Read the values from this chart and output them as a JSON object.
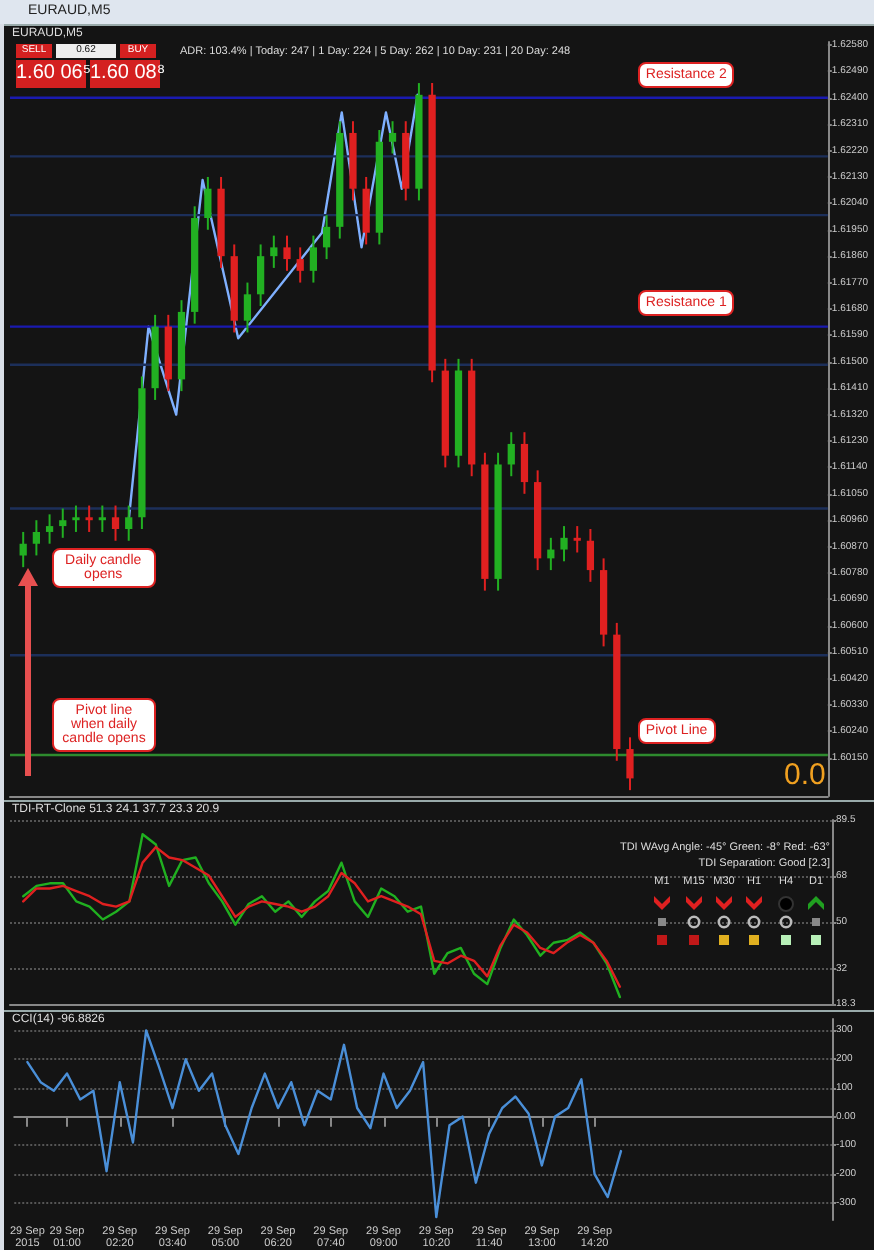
{
  "chart_data": [
    {
      "type": "candlestick",
      "title": "EURAUD,M5",
      "xlim": [
        "2015-09-28T23:40",
        "2015-09-29T20:20"
      ],
      "ylim": [
        1.6002,
        1.6259
      ],
      "tick_labels": "y",
      "yticks": [
        {
          "value": 1.6258,
          "label": "1.62580"
        },
        {
          "value": 1.6249,
          "label": "1.62490"
        },
        {
          "value": 1.624,
          "label": "1.62400"
        },
        {
          "value": 1.6231,
          "label": "1.62310"
        },
        {
          "value": 1.6222,
          "label": "1.62220"
        },
        {
          "value": 1.6213,
          "label": "1.62130"
        },
        {
          "value": 1.6204,
          "label": "1.62040"
        },
        {
          "value": 1.6195,
          "label": "1.61950"
        },
        {
          "value": 1.6186,
          "label": "1.61860"
        },
        {
          "value": 1.6177,
          "label": "1.61770"
        },
        {
          "value": 1.6168,
          "label": "1.61680"
        },
        {
          "value": 1.6159,
          "label": "1.61590"
        },
        {
          "value": 1.615,
          "label": "1.61500"
        },
        {
          "value": 1.6141,
          "label": "1.61410"
        },
        {
          "value": 1.6132,
          "label": "1.61320"
        },
        {
          "value": 1.6123,
          "label": "1.61230"
        },
        {
          "value": 1.6114,
          "label": "1.61140"
        },
        {
          "value": 1.6105,
          "label": "1.61050"
        },
        {
          "value": 1.6096,
          "label": "1.60960"
        },
        {
          "value": 1.6087,
          "label": "1.60870"
        },
        {
          "value": 1.6078,
          "label": "1.60780"
        },
        {
          "value": 1.6069,
          "label": "1.60690"
        },
        {
          "value": 1.606,
          "label": "1.60600"
        },
        {
          "value": 1.6051,
          "label": "1.60510"
        },
        {
          "value": 1.6042,
          "label": "1.60420"
        },
        {
          "value": 1.6033,
          "label": "1.60330"
        },
        {
          "value": 1.6024,
          "label": "1.60240"
        },
        {
          "value": 1.6015,
          "label": "1.60150"
        }
      ],
      "series": [
        {
          "x": [
            "2015-09-29T00:00",
            "2015-09-29T00:20",
            "2015-09-29T00:40",
            "2015-09-29T01:00",
            "2015-09-29T01:20",
            "2015-09-29T01:40",
            "2015-09-29T02:00",
            "2015-09-29T02:20",
            "2015-09-29T02:40",
            "2015-09-29T03:00",
            "2015-09-29T03:20",
            "2015-09-29T03:40",
            "2015-09-29T04:00",
            "2015-09-29T04:20",
            "2015-09-29T04:40",
            "2015-09-29T05:00",
            "2015-09-29T05:20",
            "2015-09-29T05:40",
            "2015-09-29T06:00",
            "2015-09-29T06:20",
            "2015-09-29T06:40",
            "2015-09-29T07:00",
            "2015-09-29T07:20",
            "2015-09-29T07:40",
            "2015-09-29T08:00",
            "2015-09-29T08:20",
            "2015-09-29T08:40",
            "2015-09-29T09:00",
            "2015-09-29T09:20",
            "2015-09-29T09:40",
            "2015-09-29T10:00",
            "2015-09-29T10:20",
            "2015-09-29T10:40",
            "2015-09-29T11:00",
            "2015-09-29T11:20",
            "2015-09-29T11:40",
            "2015-09-29T12:00",
            "2015-09-29T12:20",
            "2015-09-29T12:40",
            "2015-09-29T13:00",
            "2015-09-29T13:20",
            "2015-09-29T13:40",
            "2015-09-29T14:00",
            "2015-09-29T14:20",
            "2015-09-29T14:40",
            "2015-09-29T15:00",
            "2015-09-29T15:20"
          ],
          "ohlc": [
            [
              1.6084,
              1.6092,
              1.608,
              1.6088
            ],
            [
              1.6088,
              1.6096,
              1.6084,
              1.6092
            ],
            [
              1.6092,
              1.6098,
              1.6088,
              1.6094
            ],
            [
              1.6094,
              1.61,
              1.609,
              1.6096
            ],
            [
              1.6096,
              1.6101,
              1.6092,
              1.6097
            ],
            [
              1.6097,
              1.6101,
              1.6092,
              1.6096
            ],
            [
              1.6096,
              1.6101,
              1.6092,
              1.6097
            ],
            [
              1.6097,
              1.6101,
              1.6089,
              1.6093
            ],
            [
              1.6093,
              1.6101,
              1.6089,
              1.6097
            ],
            [
              1.6097,
              1.6145,
              1.6093,
              1.6141
            ],
            [
              1.6141,
              1.6166,
              1.6137,
              1.6162
            ],
            [
              1.6162,
              1.6166,
              1.614,
              1.6144
            ],
            [
              1.6144,
              1.6171,
              1.614,
              1.6167
            ],
            [
              1.6167,
              1.6203,
              1.6163,
              1.6199
            ],
            [
              1.6199,
              1.6213,
              1.6195,
              1.6209
            ],
            [
              1.6209,
              1.6213,
              1.6182,
              1.6186
            ],
            [
              1.6186,
              1.619,
              1.616,
              1.6164
            ],
            [
              1.6164,
              1.6177,
              1.616,
              1.6173
            ],
            [
              1.6173,
              1.619,
              1.6169,
              1.6186
            ],
            [
              1.6186,
              1.6193,
              1.6182,
              1.6189
            ],
            [
              1.6189,
              1.6193,
              1.6181,
              1.6185
            ],
            [
              1.6185,
              1.6189,
              1.6177,
              1.6181
            ],
            [
              1.6181,
              1.6193,
              1.6177,
              1.6189
            ],
            [
              1.6189,
              1.62,
              1.6185,
              1.6196
            ],
            [
              1.6196,
              1.6232,
              1.6192,
              1.6228
            ],
            [
              1.6228,
              1.6232,
              1.6205,
              1.6209
            ],
            [
              1.6209,
              1.6213,
              1.619,
              1.6194
            ],
            [
              1.6194,
              1.6229,
              1.619,
              1.6225
            ],
            [
              1.6225,
              1.6232,
              1.6221,
              1.6228
            ],
            [
              1.6228,
              1.6232,
              1.6205,
              1.6209
            ],
            [
              1.6209,
              1.6245,
              1.6205,
              1.6241
            ],
            [
              1.6241,
              1.6245,
              1.6143,
              1.6147
            ],
            [
              1.6147,
              1.6151,
              1.6114,
              1.6118
            ],
            [
              1.6118,
              1.6151,
              1.6114,
              1.6147
            ],
            [
              1.6147,
              1.6151,
              1.6111,
              1.6115
            ],
            [
              1.6115,
              1.6119,
              1.6072,
              1.6076
            ],
            [
              1.6076,
              1.6119,
              1.6072,
              1.6115
            ],
            [
              1.6115,
              1.6126,
              1.6111,
              1.6122
            ],
            [
              1.6122,
              1.6126,
              1.6105,
              1.6109
            ],
            [
              1.6109,
              1.6113,
              1.6079,
              1.6083
            ],
            [
              1.6083,
              1.609,
              1.6079,
              1.6086
            ],
            [
              1.6086,
              1.6094,
              1.6082,
              1.609
            ],
            [
              1.609,
              1.6094,
              1.6085,
              1.6089
            ],
            [
              1.6089,
              1.6093,
              1.6075,
              1.6079
            ],
            [
              1.6079,
              1.6083,
              1.6053,
              1.6057
            ],
            [
              1.6057,
              1.6061,
              1.6014,
              1.6018
            ],
            [
              1.6018,
              1.6022,
              1.6004,
              1.6008
            ]
          ],
          "colors": [
            "#22b022",
            "#22b022",
            "#22b022",
            "#22b022",
            "#22b022",
            "#e02020",
            "#22b022",
            "#e02020",
            "#22b022",
            "#22b022",
            "#22b022",
            "#e02020",
            "#22b022",
            "#22b022",
            "#22b022",
            "#e02020",
            "#e02020",
            "#22b022",
            "#22b022",
            "#22b022",
            "#e02020",
            "#e02020",
            "#22b022",
            "#22b022",
            "#22b022",
            "#e02020",
            "#e02020",
            "#22b022",
            "#22b022",
            "#e02020",
            "#22b022",
            "#e02020",
            "#e02020",
            "#22b022",
            "#e02020",
            "#e02020",
            "#22b022",
            "#22b022",
            "#e02020",
            "#e02020",
            "#22b022",
            "#22b022",
            "#e02020",
            "#e02020",
            "#e02020",
            "#e02020",
            "#e02020"
          ]
        },
        {
          "type": "line",
          "color": "#7fb0ff",
          "marker": "none",
          "x": [
            "2015-09-29T02:40",
            "2015-09-29T03:10",
            "2015-09-29T03:52",
            "2015-09-29T04:32",
            "2015-09-29T05:26",
            "2015-09-29T07:33",
            "2015-09-29T08:03",
            "2015-09-29T08:33",
            "2015-09-29T09:10",
            "2015-09-29T09:34",
            "2015-09-29T09:58"
          ],
          "values": [
            1.6096,
            1.6162,
            1.6132,
            1.6212,
            1.6158,
            1.6194,
            1.6235,
            1.6189,
            1.6235,
            1.6209,
            1.6241
          ]
        }
      ],
      "ref_lines": [
        {
          "axis": "y",
          "value": 1.624,
          "label": "Resistance 2",
          "color": "#1a1ab0"
        },
        {
          "axis": "y",
          "value": 1.6162,
          "label": "Resistance 1",
          "color": "#1a1ab0"
        },
        {
          "axis": "y",
          "value": 1.6016,
          "label": "Pivot Line",
          "color": "#2e8b2e"
        },
        {
          "axis": "y",
          "value": 1.622,
          "color": "#1c2f5a"
        },
        {
          "axis": "y",
          "value": 1.62,
          "color": "#1c2f5a"
        },
        {
          "axis": "y",
          "value": 1.6149,
          "color": "#1c2f5a"
        },
        {
          "axis": "y",
          "value": 1.61,
          "color": "#1c2f5a"
        },
        {
          "axis": "y",
          "value": 1.605,
          "color": "#1c2f5a"
        }
      ],
      "annotations": [
        "EURAUD,M5",
        "SELL",
        "0.62",
        "BUY",
        "1.60 06⁵",
        "1.60 08⁸",
        "ADR: 103.4%  |  Today: 247  |  1 Day: 224  |  5 Day: 262  |  10 Day: 231  |  20 Day: 248",
        "0.0",
        "Pivot line when daily candle opens",
        {
          "text": "Daily candle opens",
          "x": "2015-09-29T00:00",
          "y": 1.6084
        }
      ]
    },
    {
      "type": "line",
      "title": "TDI-RT-Clone 51.3 24.1 37.7 23.3 20.9",
      "xlim": [
        "2015-09-28T23:40",
        "2015-09-29T20:20"
      ],
      "ylim": [
        18.3,
        89.5
      ],
      "yticks": [
        18.3,
        32,
        50,
        68,
        89.5
      ],
      "grid": "y",
      "tick_labels": "y",
      "marker": "none",
      "x": [
        "2015-09-29T00:00",
        "2015-09-29T00:20",
        "2015-09-29T00:40",
        "2015-09-29T01:00",
        "2015-09-29T01:20",
        "2015-09-29T01:40",
        "2015-09-29T02:00",
        "2015-09-29T02:20",
        "2015-09-29T02:40",
        "2015-09-29T03:00",
        "2015-09-29T03:20",
        "2015-09-29T03:40",
        "2015-09-29T04:00",
        "2015-09-29T04:20",
        "2015-09-29T04:40",
        "2015-09-29T05:00",
        "2015-09-29T05:20",
        "2015-09-29T05:40",
        "2015-09-29T06:00",
        "2015-09-29T06:20",
        "2015-09-29T06:40",
        "2015-09-29T07:00",
        "2015-09-29T07:20",
        "2015-09-29T07:40",
        "2015-09-29T08:00",
        "2015-09-29T08:20",
        "2015-09-29T08:40",
        "2015-09-29T09:00",
        "2015-09-29T09:20",
        "2015-09-29T09:40",
        "2015-09-29T10:00",
        "2015-09-29T10:20",
        "2015-09-29T10:40",
        "2015-09-29T11:00",
        "2015-09-29T11:20",
        "2015-09-29T11:40",
        "2015-09-29T12:00",
        "2015-09-29T12:20",
        "2015-09-29T12:40",
        "2015-09-29T13:00",
        "2015-09-29T13:20",
        "2015-09-29T13:40",
        "2015-09-29T14:00",
        "2015-09-29T14:20",
        "2015-09-29T14:40",
        "2015-09-29T15:00"
      ],
      "series": [
        {
          "color": "#20b020",
          "values": [
            60,
            64,
            65,
            65,
            58,
            56,
            51,
            54,
            58,
            84,
            80,
            64,
            74,
            75,
            65,
            58,
            49,
            57,
            60,
            54,
            58,
            52,
            58,
            62,
            73,
            58,
            52,
            63,
            60,
            54,
            56,
            30,
            38,
            40,
            30,
            26,
            40,
            51,
            45,
            37,
            42,
            43,
            46,
            42,
            34,
            21
          ]
        },
        {
          "color": "#e02020",
          "values": [
            58,
            63,
            63,
            64,
            62,
            60,
            57,
            56,
            58,
            73,
            79,
            75,
            74,
            71,
            68,
            60,
            52,
            56,
            58,
            57,
            56,
            54,
            56,
            60,
            69,
            65,
            58,
            60,
            58,
            56,
            53,
            35,
            34,
            37,
            35,
            29,
            41,
            49,
            46,
            40,
            38,
            42,
            45,
            42,
            35,
            25
          ]
        }
      ],
      "annotations": [
        "TDI WAvg Angle: -45°  Green: -8°  Red: -63°",
        "TDI Separation: Good [2.3]",
        "M1",
        "M15",
        "M30",
        "H1",
        "H4",
        "D1"
      ]
    },
    {
      "type": "line",
      "title": "CCI(14) -96.8826",
      "xlim": [
        "2015-09-28T23:40",
        "2015-09-29T20:20"
      ],
      "ylim": [
        -360,
        340
      ],
      "yticks": [
        -300,
        -200,
        -100,
        {
          "value": 0,
          "label": "0.00"
        },
        100,
        200,
        300
      ],
      "grid": "y",
      "marker": "none",
      "xticks": [
        {
          "value": "2015-09-29T00:00",
          "label": "29 Sep 2015"
        },
        {
          "value": "2015-09-29T01:00",
          "label": "29 Sep 01:00"
        },
        {
          "value": "2015-09-29T02:20",
          "label": "29 Sep 02:20"
        },
        {
          "value": "2015-09-29T03:40",
          "label": "29 Sep 03:40"
        },
        {
          "value": "2015-09-29T05:00",
          "label": "29 Sep 05:00"
        },
        {
          "value": "2015-09-29T06:20",
          "label": "29 Sep 06:20"
        },
        {
          "value": "2015-09-29T07:40",
          "label": "29 Sep 07:40"
        },
        {
          "value": "2015-09-29T09:00",
          "label": "29 Sep 09:00"
        },
        {
          "value": "2015-09-29T10:20",
          "label": "29 Sep 10:20"
        },
        {
          "value": "2015-09-29T11:40",
          "label": "29 Sep 11:40"
        },
        {
          "value": "2015-09-29T13:00",
          "label": "29 Sep 13:00"
        },
        {
          "value": "2015-09-29T14:20",
          "label": "29 Sep 14:20"
        }
      ],
      "x": [
        "2015-09-29T00:00",
        "2015-09-29T00:20",
        "2015-09-29T00:40",
        "2015-09-29T01:00",
        "2015-09-29T01:20",
        "2015-09-29T01:40",
        "2015-09-29T02:00",
        "2015-09-29T02:20",
        "2015-09-29T02:40",
        "2015-09-29T03:00",
        "2015-09-29T03:20",
        "2015-09-29T03:40",
        "2015-09-29T04:00",
        "2015-09-29T04:20",
        "2015-09-29T04:40",
        "2015-09-29T05:00",
        "2015-09-29T05:20",
        "2015-09-29T05:40",
        "2015-09-29T06:00",
        "2015-09-29T06:20",
        "2015-09-29T06:40",
        "2015-09-29T07:00",
        "2015-09-29T07:20",
        "2015-09-29T07:40",
        "2015-09-29T08:00",
        "2015-09-29T08:20",
        "2015-09-29T08:40",
        "2015-09-29T09:00",
        "2015-09-29T09:20",
        "2015-09-29T09:40",
        "2015-09-29T10:00",
        "2015-09-29T10:20",
        "2015-09-29T10:40",
        "2015-09-29T11:00",
        "2015-09-29T11:20",
        "2015-09-29T11:40",
        "2015-09-29T12:00",
        "2015-09-29T12:20",
        "2015-09-29T12:40",
        "2015-09-29T13:00",
        "2015-09-29T13:20",
        "2015-09-29T13:40",
        "2015-09-29T14:00",
        "2015-09-29T14:20",
        "2015-09-29T14:40",
        "2015-09-29T15:00"
      ],
      "series": [
        {
          "color": "#4a8fd8",
          "values": [
            190,
            120,
            90,
            150,
            60,
            90,
            -190,
            120,
            -90,
            300,
            170,
            30,
            200,
            90,
            150,
            -30,
            -130,
            30,
            150,
            30,
            120,
            -30,
            90,
            60,
            250,
            30,
            -40,
            150,
            30,
            90,
            190,
            -350,
            -30,
            0,
            -230,
            -60,
            30,
            70,
            10,
            -170,
            0,
            30,
            130,
            -200,
            -280,
            -120
          ]
        }
      ]
    }
  ]
}
